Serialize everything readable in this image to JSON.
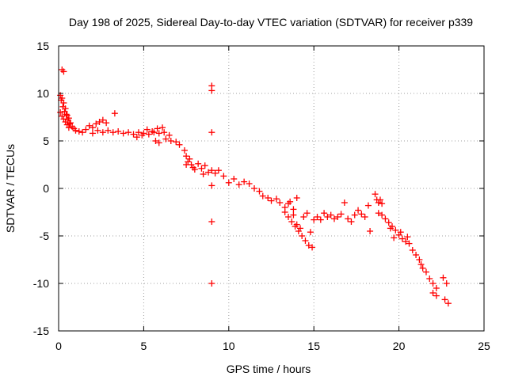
{
  "chart_data": {
    "type": "scatter",
    "title": "Day 198 of 2025, Sidereal Day-to-day VTEC variation (SDTVAR) for receiver p339",
    "xlabel": "GPS time / hours",
    "ylabel": "SDTVAR / TECUs",
    "xlim": [
      0,
      25
    ],
    "ylim": [
      -15,
      15
    ],
    "x_ticks": [
      0,
      5,
      10,
      15,
      20,
      25
    ],
    "y_ticks": [
      15,
      10,
      5,
      0,
      -5,
      -10,
      -15
    ],
    "grid": true,
    "marker": "+",
    "colors": {
      "points": "#ff0000",
      "grid": "#a0a0a0",
      "axis": "#000000"
    },
    "series": [
      {
        "name": "SDTVAR",
        "points": [
          [
            0.2,
            12.5
          ],
          [
            0.3,
            12.3
          ],
          [
            0.1,
            9.8
          ],
          [
            0.15,
            9.3
          ],
          [
            0.2,
            9.5
          ],
          [
            0.25,
            8.6
          ],
          [
            0.3,
            9.0
          ],
          [
            0.35,
            8.1
          ],
          [
            0.4,
            8.4
          ],
          [
            0.45,
            7.8
          ],
          [
            0.5,
            7.7
          ],
          [
            0.55,
            7.2
          ],
          [
            0.6,
            7.4
          ],
          [
            0.65,
            6.8
          ],
          [
            0.7,
            6.9
          ],
          [
            0.8,
            6.5
          ],
          [
            0.9,
            6.3
          ],
          [
            1.0,
            6.1
          ],
          [
            0.1,
            8.0
          ],
          [
            0.2,
            7.6
          ],
          [
            0.3,
            7.3
          ],
          [
            0.4,
            7.0
          ],
          [
            0.5,
            6.7
          ],
          [
            0.6,
            6.4
          ],
          [
            1.2,
            6.0
          ],
          [
            1.4,
            5.9
          ],
          [
            1.6,
            6.2
          ],
          [
            1.8,
            6.6
          ],
          [
            2.0,
            6.4
          ],
          [
            2.2,
            6.8
          ],
          [
            2.4,
            7.0
          ],
          [
            2.6,
            7.2
          ],
          [
            2.8,
            6.9
          ],
          [
            3.3,
            7.9
          ],
          [
            2.0,
            5.8
          ],
          [
            2.3,
            6.1
          ],
          [
            2.6,
            5.9
          ],
          [
            2.9,
            6.1
          ],
          [
            3.2,
            5.9
          ],
          [
            3.5,
            6.0
          ],
          [
            3.8,
            5.8
          ],
          [
            4.1,
            5.9
          ],
          [
            4.4,
            5.7
          ],
          [
            4.7,
            5.9
          ],
          [
            5.0,
            5.8
          ],
          [
            5.3,
            5.7
          ],
          [
            5.6,
            5.9
          ],
          [
            5.9,
            5.8
          ],
          [
            6.2,
            5.9
          ],
          [
            6.5,
            5.6
          ],
          [
            4.6,
            5.4
          ],
          [
            4.9,
            5.6
          ],
          [
            5.2,
            6.2
          ],
          [
            5.5,
            6.0
          ],
          [
            5.8,
            6.3
          ],
          [
            6.1,
            6.4
          ],
          [
            5.7,
            5.0
          ],
          [
            5.9,
            4.8
          ],
          [
            6.3,
            5.2
          ],
          [
            6.6,
            5.0
          ],
          [
            6.9,
            4.9
          ],
          [
            7.1,
            4.6
          ],
          [
            7.4,
            4.0
          ],
          [
            7.5,
            3.4
          ],
          [
            7.6,
            2.8
          ],
          [
            7.7,
            3.1
          ],
          [
            7.8,
            2.5
          ],
          [
            7.9,
            2.2
          ],
          [
            8.0,
            2.0
          ],
          [
            7.5,
            2.5
          ],
          [
            8.2,
            2.6
          ],
          [
            8.4,
            2.1
          ],
          [
            8.6,
            2.4
          ],
          [
            8.8,
            1.7
          ],
          [
            9.0,
            1.9
          ],
          [
            9.2,
            1.6
          ],
          [
            9.4,
            1.9
          ],
          [
            8.5,
            1.5
          ],
          [
            9.0,
            10.8
          ],
          [
            9.0,
            10.3
          ],
          [
            9.0,
            5.9
          ],
          [
            9.0,
            0.3
          ],
          [
            9.0,
            -3.5
          ],
          [
            9.0,
            -10.0
          ],
          [
            9.7,
            1.3
          ],
          [
            10.0,
            0.6
          ],
          [
            10.3,
            1.0
          ],
          [
            10.6,
            0.4
          ],
          [
            10.9,
            0.7
          ],
          [
            11.2,
            0.5
          ],
          [
            11.5,
            0.0
          ],
          [
            11.8,
            -0.3
          ],
          [
            12.0,
            -0.8
          ],
          [
            12.3,
            -1.0
          ],
          [
            12.5,
            -1.3
          ],
          [
            12.8,
            -1.1
          ],
          [
            13.0,
            -1.5
          ],
          [
            13.3,
            -2.0
          ],
          [
            13.5,
            -1.6
          ],
          [
            13.8,
            -2.2
          ],
          [
            14.0,
            -1.0
          ],
          [
            13.3,
            -2.5
          ],
          [
            13.5,
            -3.0
          ],
          [
            13.7,
            -3.5
          ],
          [
            13.9,
            -4.0
          ],
          [
            14.1,
            -4.5
          ],
          [
            14.3,
            -5.0
          ],
          [
            14.5,
            -5.5
          ],
          [
            14.7,
            -6.0
          ],
          [
            14.9,
            -6.2
          ],
          [
            13.6,
            -1.4
          ],
          [
            13.8,
            -2.8
          ],
          [
            14.0,
            -3.8
          ],
          [
            14.2,
            -4.2
          ],
          [
            14.4,
            -3.0
          ],
          [
            14.6,
            -2.6
          ],
          [
            14.8,
            -4.6
          ],
          [
            15.0,
            -3.3
          ],
          [
            15.2,
            -3.0
          ],
          [
            15.4,
            -3.3
          ],
          [
            15.6,
            -2.6
          ],
          [
            15.8,
            -3.0
          ],
          [
            16.0,
            -2.8
          ],
          [
            16.2,
            -3.2
          ],
          [
            16.4,
            -3.0
          ],
          [
            16.6,
            -2.7
          ],
          [
            16.8,
            -1.5
          ],
          [
            17.0,
            -3.2
          ],
          [
            17.2,
            -3.5
          ],
          [
            17.4,
            -2.8
          ],
          [
            17.6,
            -2.3
          ],
          [
            17.8,
            -2.7
          ],
          [
            18.0,
            -3.0
          ],
          [
            18.2,
            -1.8
          ],
          [
            18.3,
            -4.5
          ],
          [
            18.6,
            -0.6
          ],
          [
            18.7,
            -1.2
          ],
          [
            18.8,
            -1.5
          ],
          [
            18.9,
            -1.2
          ],
          [
            19.0,
            -1.6
          ],
          [
            18.8,
            -2.6
          ],
          [
            19.0,
            -2.8
          ],
          [
            19.2,
            -3.2
          ],
          [
            19.4,
            -3.6
          ],
          [
            19.6,
            -4.0
          ],
          [
            19.8,
            -4.4
          ],
          [
            20.0,
            -4.9
          ],
          [
            20.2,
            -5.3
          ],
          [
            20.4,
            -5.6
          ],
          [
            20.6,
            -5.8
          ],
          [
            19.5,
            -4.2
          ],
          [
            19.7,
            -5.2
          ],
          [
            20.1,
            -4.6
          ],
          [
            20.5,
            -5.1
          ],
          [
            20.8,
            -6.5
          ],
          [
            21.0,
            -7.0
          ],
          [
            21.2,
            -7.5
          ],
          [
            21.3,
            -8.0
          ],
          [
            21.4,
            -8.4
          ],
          [
            21.6,
            -8.8
          ],
          [
            21.8,
            -9.5
          ],
          [
            22.0,
            -10.0
          ],
          [
            22.2,
            -10.5
          ],
          [
            22.0,
            -11.0
          ],
          [
            22.2,
            -11.3
          ],
          [
            22.6,
            -9.4
          ],
          [
            22.8,
            -10.0
          ],
          [
            22.7,
            -11.7
          ],
          [
            22.9,
            -12.1
          ]
        ]
      }
    ]
  }
}
